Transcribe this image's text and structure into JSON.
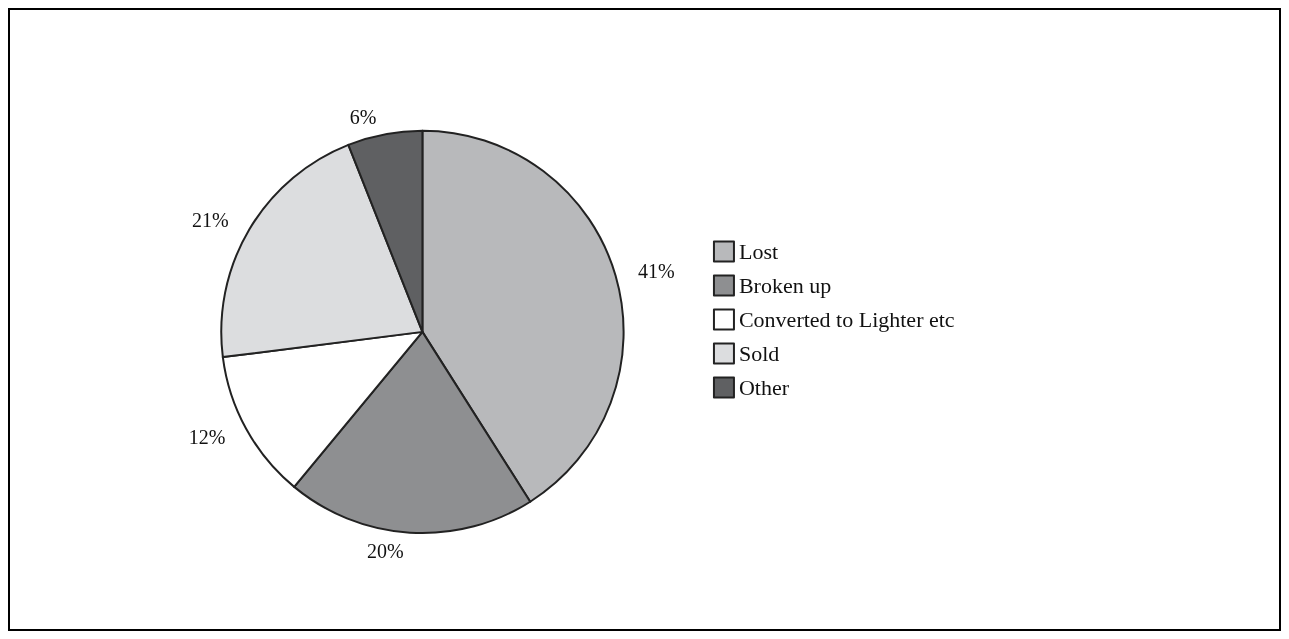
{
  "chart_data": {
    "type": "pie",
    "categories": [
      "Lost",
      "Broken up",
      "Converted to Lighter etc",
      "Sold",
      "Other"
    ],
    "values": [
      41,
      20,
      12,
      21,
      6
    ],
    "value_labels": [
      "41%",
      "20%",
      "12%",
      "21%",
      "6%"
    ],
    "colors": [
      "#b8b9bb",
      "#8e8f91",
      "#ffffff",
      "#dcdddf",
      "#5f6062"
    ],
    "legend": "right"
  }
}
